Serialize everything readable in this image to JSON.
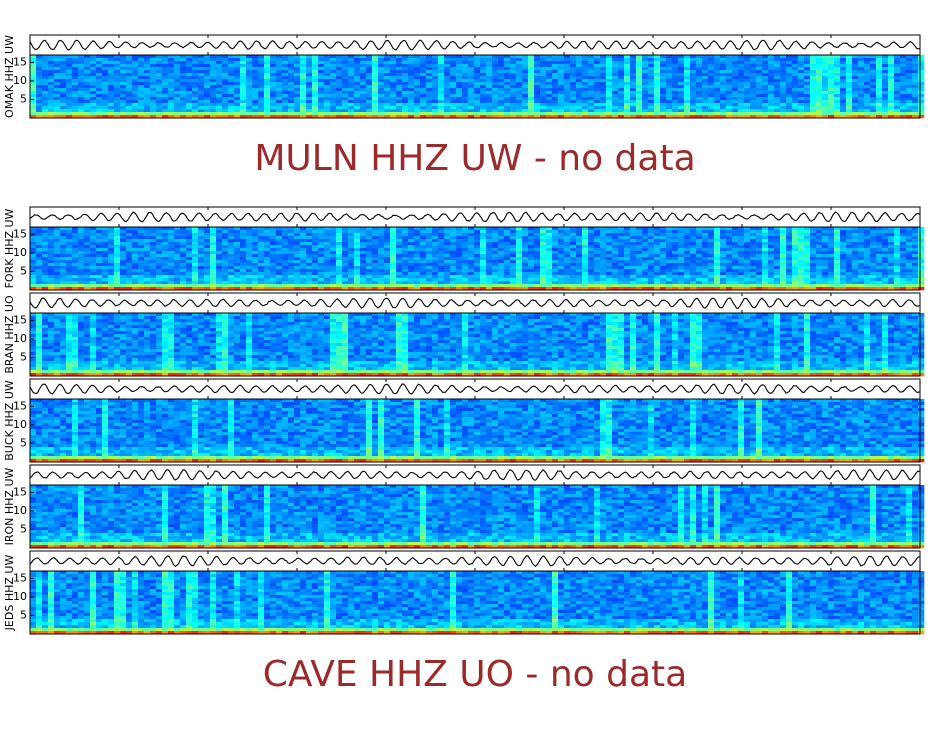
{
  "chart_data": [
    {
      "type": "spectrogram",
      "ylabel": "OMAK HHZ UW",
      "ylim": [
        0,
        17
      ],
      "yticks": [
        5,
        10,
        15
      ]
    },
    {
      "type": "spectrogram",
      "ylabel": "FORK HHZ UW",
      "ylim": [
        0,
        17
      ],
      "yticks": [
        5,
        10,
        15
      ]
    },
    {
      "type": "spectrogram",
      "ylabel": "BRAN HHZ UO",
      "ylim": [
        0,
        17
      ],
      "yticks": [
        5,
        10,
        15
      ]
    },
    {
      "type": "spectrogram",
      "ylabel": "BUCK HHZ UW",
      "ylim": [
        0,
        17
      ],
      "yticks": [
        5,
        10,
        15
      ]
    },
    {
      "type": "spectrogram",
      "ylabel": "IRON HHZ UW",
      "ylim": [
        0,
        17
      ],
      "yticks": [
        5,
        10,
        15
      ]
    },
    {
      "type": "spectrogram",
      "ylabel": "JEDS HHZ UW",
      "ylim": [
        0,
        17
      ],
      "yticks": [
        5,
        10,
        15
      ]
    }
  ],
  "messages": [
    "MULN HHZ UW - no data",
    "CAVE HHZ UO - no data"
  ]
}
